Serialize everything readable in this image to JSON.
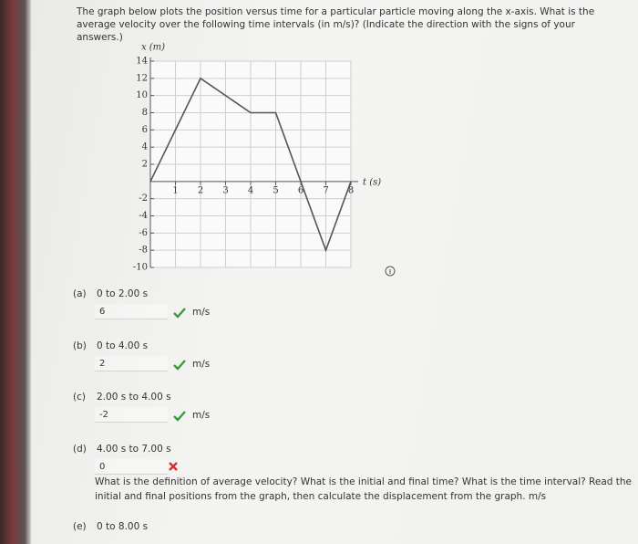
{
  "question": "The graph below plots the position versus time for a particular particle moving along the x-axis. What is the average velocity over the following time intervals (in m/s)? (Indicate the direction with the signs of your answers.)",
  "chart_data": {
    "type": "line",
    "y_label": "x (m)",
    "x_label": "t (s)",
    "x": [
      0,
      2,
      4,
      5,
      7,
      8
    ],
    "series": [
      {
        "values": [
          0,
          12,
          8,
          8,
          -8,
          0
        ],
        "color": "#555555"
      }
    ],
    "xlim": [
      0,
      8
    ],
    "ylim": [
      -10,
      14
    ],
    "xticks": [
      1,
      2,
      3,
      4,
      5,
      6,
      7,
      8
    ],
    "yticks": [
      -10,
      -8,
      -6,
      -4,
      -2,
      2,
      4,
      6,
      8,
      10,
      12,
      14
    ],
    "grid": true
  },
  "parts": [
    {
      "label": "(a)",
      "interval": "0 to 2.00 s",
      "answer": "6",
      "unit": "m/s",
      "correct": true
    },
    {
      "label": "(b)",
      "interval": "0 to 4.00 s",
      "answer": "2",
      "unit": "m/s",
      "correct": true
    },
    {
      "label": "(c)",
      "interval": "2.00 s to 4.00 s",
      "answer": "-2",
      "unit": "m/s",
      "correct": true
    },
    {
      "label": "(d)",
      "interval": "4.00 s to 7.00 s",
      "answer": "0",
      "correct": false,
      "feedback": "What is the definition of average velocity? What is the initial and final time? What is the time interval? Read the initial and final positions from the graph, then calculate the displacement from the graph.",
      "unit": "m/s"
    },
    {
      "label": "(e)",
      "interval": "0 to 8.00 s"
    }
  ]
}
